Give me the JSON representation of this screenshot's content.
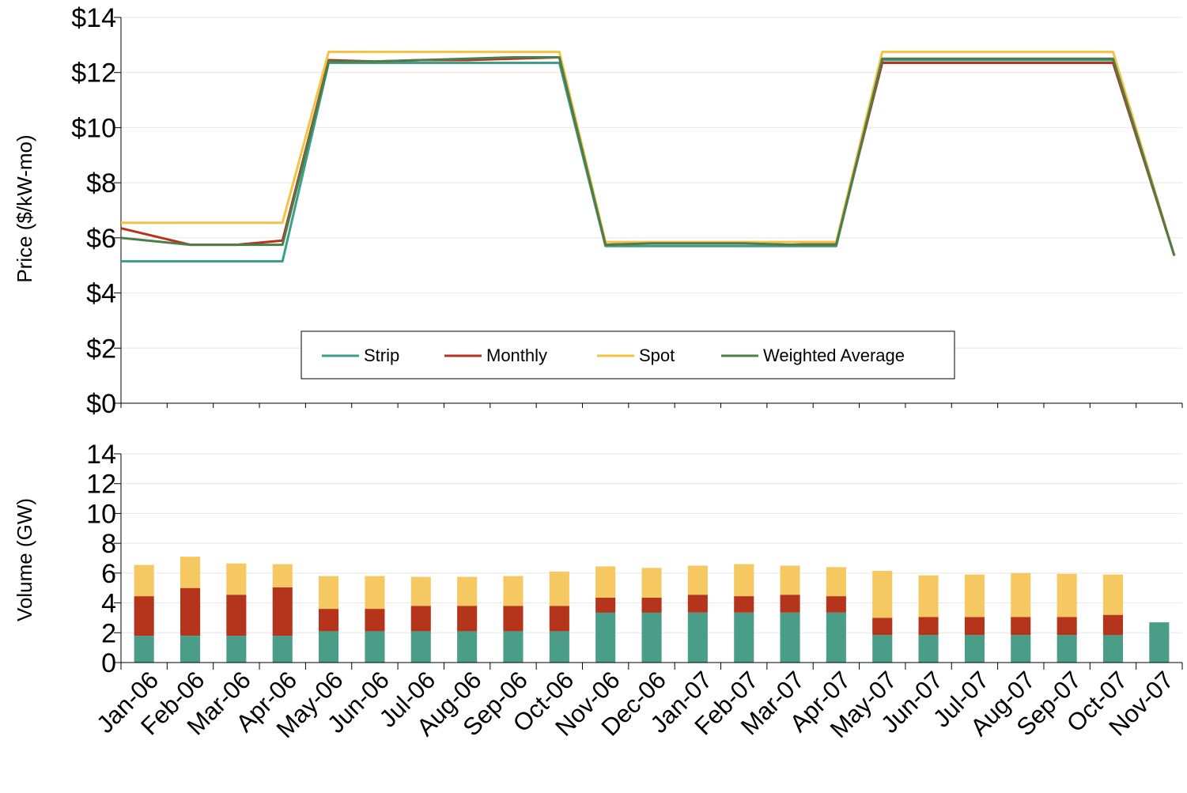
{
  "chart_data": [
    {
      "type": "line",
      "ylabel": "Price ($/kW-mo)",
      "ylim": [
        0,
        14
      ],
      "yticks": [
        "$0",
        "$2",
        "$4",
        "$6",
        "$8",
        "$10",
        "$12",
        "$14"
      ],
      "grid": true,
      "legend_position": "bottom-center",
      "categories": [
        "Jan-06",
        "Feb-06",
        "Mar-06",
        "Apr-06",
        "May-06",
        "Jun-06",
        "Jul-06",
        "Aug-06",
        "Sep-06",
        "Oct-06",
        "Nov-06",
        "Dec-06",
        "Jan-07",
        "Feb-07",
        "Mar-07",
        "Apr-07",
        "May-07",
        "Jun-07",
        "Jul-07",
        "Aug-07",
        "Sep-07",
        "Oct-07",
        "Nov-07"
      ],
      "series": [
        {
          "name": "Strip",
          "color": "#3d9e8a",
          "values": [
            5.15,
            5.15,
            5.15,
            5.15,
            12.35,
            12.35,
            12.35,
            12.35,
            12.35,
            12.35,
            5.7,
            5.7,
            5.7,
            5.7,
            5.7,
            5.7,
            12.45,
            12.45,
            12.45,
            12.45,
            12.45,
            12.45,
            5.35
          ]
        },
        {
          "name": "Monthly",
          "color": "#b5341c",
          "values": [
            6.35,
            5.75,
            5.75,
            5.9,
            12.45,
            12.4,
            12.45,
            12.45,
            12.5,
            12.55,
            5.75,
            5.8,
            5.8,
            5.8,
            5.75,
            5.8,
            12.35,
            12.35,
            12.35,
            12.35,
            12.35,
            12.35,
            5.35
          ]
        },
        {
          "name": "Spot",
          "color": "#f5c242",
          "values": [
            6.55,
            6.55,
            6.55,
            6.55,
            12.75,
            12.75,
            12.75,
            12.75,
            12.75,
            12.75,
            5.85,
            5.85,
            5.85,
            5.85,
            5.85,
            5.85,
            12.75,
            12.75,
            12.75,
            12.75,
            12.75,
            12.75,
            5.35
          ]
        },
        {
          "name": "Weighted Average",
          "color": "#4e7d4a",
          "values": [
            6.0,
            5.75,
            5.75,
            5.75,
            12.4,
            12.4,
            12.45,
            12.5,
            12.55,
            12.55,
            5.75,
            5.8,
            5.8,
            5.8,
            5.75,
            5.75,
            12.5,
            12.5,
            12.5,
            12.5,
            12.5,
            12.5,
            5.35
          ]
        }
      ]
    },
    {
      "type": "bar",
      "stacked": true,
      "ylabel": "Volume (GW)",
      "ylim": [
        0,
        14
      ],
      "yticks": [
        "0",
        "2",
        "4",
        "6",
        "8",
        "10",
        "12",
        "14"
      ],
      "grid": true,
      "categories": [
        "Jan-06",
        "Feb-06",
        "Mar-06",
        "Apr-06",
        "May-06",
        "Jun-06",
        "Jul-06",
        "Aug-06",
        "Sep-06",
        "Oct-06",
        "Nov-06",
        "Dec-06",
        "Jan-07",
        "Feb-07",
        "Mar-07",
        "Apr-07",
        "May-07",
        "Jun-07",
        "Jul-07",
        "Aug-07",
        "Sep-07",
        "Oct-07",
        "Nov-07"
      ],
      "series": [
        {
          "name": "Strip",
          "color": "#4a9e88",
          "values": [
            1.8,
            1.8,
            1.8,
            1.8,
            2.1,
            2.1,
            2.1,
            2.1,
            2.1,
            2.1,
            3.35,
            3.35,
            3.35,
            3.35,
            3.35,
            3.35,
            1.85,
            1.85,
            1.85,
            1.85,
            1.85,
            1.85,
            2.7
          ]
        },
        {
          "name": "Monthly",
          "color": "#b5341c",
          "values": [
            2.65,
            3.2,
            2.75,
            3.25,
            1.5,
            1.5,
            1.7,
            1.7,
            1.7,
            1.7,
            1.0,
            1.0,
            1.2,
            1.1,
            1.2,
            1.1,
            1.15,
            1.2,
            1.2,
            1.2,
            1.2,
            1.35,
            0
          ]
        },
        {
          "name": "Spot",
          "color": "#f5c862",
          "values": [
            2.1,
            2.1,
            2.1,
            1.55,
            2.2,
            2.2,
            1.95,
            1.95,
            2.0,
            2.3,
            2.1,
            2.0,
            1.95,
            2.15,
            1.95,
            1.95,
            3.15,
            2.8,
            2.85,
            2.95,
            2.9,
            2.7,
            0
          ]
        }
      ]
    }
  ]
}
